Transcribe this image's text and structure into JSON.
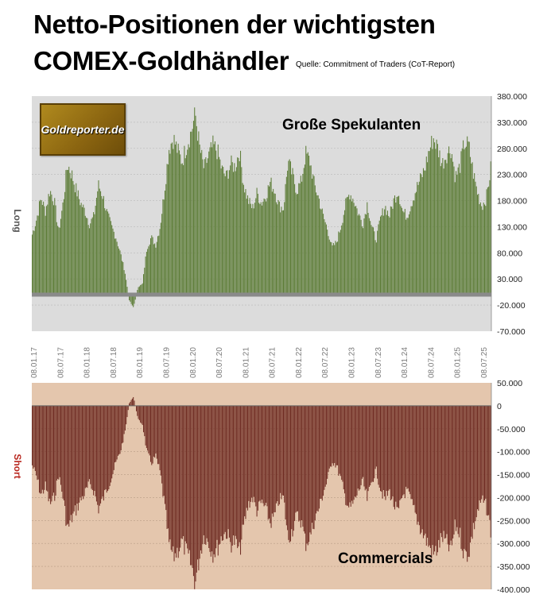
{
  "title_line1": "Netto-Positionen der wichtigsten",
  "title_line2": "COMEX-Goldhändler",
  "source": "Quelle: Commitment of Traders (CoT-Report)",
  "logo_text": "Goldreporter.de",
  "colors": {
    "long_bars": "#5c7c36",
    "short_bars": "#6e2b22",
    "top_bg": "#dcdcdc",
    "bottom_bg": "#e4c6ad",
    "baseline": "#8a8a8a",
    "long_label": "#555555",
    "short_label": "#b8261e"
  },
  "chart_data": [
    {
      "type": "bar",
      "title": "Große Spekulanten",
      "ylabel": "Long",
      "ylim": [
        -70000,
        380000
      ],
      "yticks": [
        380000,
        330000,
        280000,
        230000,
        180000,
        130000,
        80000,
        30000,
        -20000,
        -70000
      ],
      "ytick_labels": [
        "380.000",
        "330.000",
        "280.000",
        "230.000",
        "180.000",
        "130.000",
        "80.000",
        "30.000",
        "-20.000",
        "-70.000"
      ],
      "x_tick_labels": [
        "08.01.17",
        "08.07.17",
        "08.01.18",
        "08.07.18",
        "08.01.19",
        "08.07.19",
        "08.01.20",
        "08.07.20",
        "08.01.21",
        "08.07.21",
        "08.01.22",
        "08.07.22",
        "08.01.23",
        "08.07.23",
        "08.01.24",
        "08.07.24",
        "08.01.25",
        "08.07.25"
      ],
      "x_start": "2017-01-01",
      "x_end": "2025-09-15",
      "series": [
        {
          "values_by_month": [
            115000,
            145000,
            185000,
            160000,
            200000,
            180000,
            120000,
            175000,
            250000,
            230000,
            200000,
            175000,
            160000,
            135000,
            150000,
            210000,
            190000,
            155000,
            130000,
            110000,
            80000,
            45000,
            -10000,
            -25000,
            15000,
            20000,
            90000,
            110000,
            95000,
            130000,
            200000,
            280000,
            300000,
            275000,
            255000,
            285000,
            310000,
            345000,
            280000,
            240000,
            265000,
            285000,
            275000,
            240000,
            225000,
            250000,
            245000,
            275000,
            210000,
            180000,
            165000,
            195000,
            175000,
            190000,
            215000,
            200000,
            170000,
            165000,
            255000,
            230000,
            200000,
            215000,
            270000,
            255000,
            210000,
            185000,
            150000,
            125000,
            90000,
            100000,
            130000,
            170000,
            195000,
            180000,
            155000,
            135000,
            175000,
            130000,
            105000,
            145000,
            170000,
            150000,
            180000,
            200000,
            160000,
            150000,
            175000,
            200000,
            220000,
            240000,
            275000,
            300000,
            280000,
            250000,
            270000,
            280000,
            225000,
            245000,
            290000,
            285000,
            235000,
            195000,
            170000,
            185000,
            240000
          ]
        }
      ]
    },
    {
      "type": "bar",
      "title": "Commercials",
      "ylabel": "Short",
      "ylim": [
        -400000,
        50000
      ],
      "yticks": [
        50000,
        0,
        -50000,
        -100000,
        -150000,
        -200000,
        -250000,
        -300000,
        -350000,
        -400000
      ],
      "ytick_labels": [
        "50.000",
        "0",
        "-50.000",
        "-100.000",
        "-150.000",
        "-200.000",
        "-250.000",
        "-300.000",
        "-350.000",
        "-400.000"
      ],
      "x_start": "2017-01-01",
      "x_end": "2025-09-15",
      "series": [
        {
          "values_by_month": [
            -130000,
            -155000,
            -195000,
            -175000,
            -215000,
            -200000,
            -150000,
            -200000,
            -270000,
            -245000,
            -225000,
            -205000,
            -190000,
            -170000,
            -185000,
            -225000,
            -205000,
            -180000,
            -155000,
            -125000,
            -100000,
            -60000,
            5000,
            20000,
            -30000,
            -40000,
            -100000,
            -125000,
            -110000,
            -145000,
            -215000,
            -300000,
            -330000,
            -315000,
            -295000,
            -320000,
            -345000,
            -385000,
            -325000,
            -280000,
            -300000,
            -320000,
            -310000,
            -285000,
            -275000,
            -300000,
            -295000,
            -320000,
            -260000,
            -215000,
            -200000,
            -230000,
            -210000,
            -225000,
            -255000,
            -240000,
            -205000,
            -200000,
            -290000,
            -270000,
            -240000,
            -250000,
            -300000,
            -285000,
            -250000,
            -225000,
            -190000,
            -160000,
            -120000,
            -130000,
            -160000,
            -200000,
            -225000,
            -210000,
            -185000,
            -165000,
            -205000,
            -165000,
            -140000,
            -180000,
            -205000,
            -185000,
            -215000,
            -235000,
            -195000,
            -185000,
            -210000,
            -240000,
            -265000,
            -285000,
            -305000,
            -325000,
            -310000,
            -285000,
            -300000,
            -315000,
            -260000,
            -280000,
            -325000,
            -320000,
            -270000,
            -230000,
            -205000,
            -220000,
            -270000
          ]
        }
      ]
    }
  ]
}
